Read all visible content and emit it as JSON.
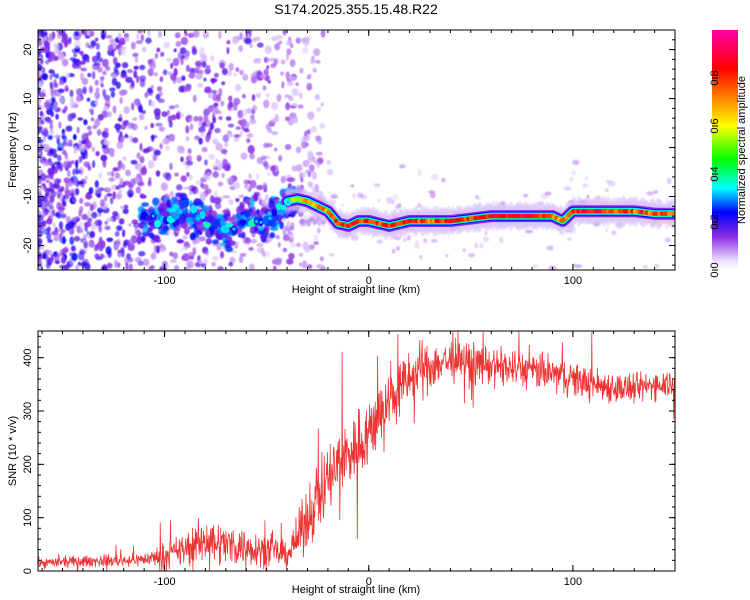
{
  "title": "S174.2025.355.15.48.R22",
  "chart_data": [
    {
      "type": "heatmap",
      "name": "spectrogram",
      "xlabel": "Height of straight line (km)",
      "ylabel": "Frequency (Hz)",
      "xlim": [
        -162,
        150
      ],
      "ylim": [
        -25,
        24
      ],
      "xticks": [
        -100,
        0,
        100
      ],
      "xtick_labels": [
        "-100",
        "0",
        "100"
      ],
      "yticks": [
        20,
        10,
        0,
        -10,
        -20
      ],
      "ytick_labels": [
        "20",
        "10",
        "0",
        "-10",
        "-20"
      ],
      "colorbar": {
        "label": "Normalized spectral amplitude",
        "range": [
          0,
          1
        ],
        "ticks": [
          0,
          0.2,
          0.4,
          0.6,
          0.8
        ],
        "tick_labels": [
          "0.0",
          "0.2",
          "0.4",
          "0.6",
          "0.8"
        ],
        "colors": [
          "#ffffff",
          "#8a2be2",
          "#0000ff",
          "#00ffff",
          "#00ff00",
          "#ffff00",
          "#ff8000",
          "#ff0000",
          "#ff00aa"
        ]
      },
      "ridge": {
        "x": [
          -110,
          -100,
          -90,
          -80,
          -70,
          -60,
          -50,
          -40,
          -35,
          -30,
          -25,
          -20,
          -15,
          -10,
          -5,
          0,
          10,
          20,
          30,
          40,
          50,
          60,
          70,
          80,
          90,
          95,
          100,
          110,
          120,
          130,
          140,
          150
        ],
        "freq": [
          -14,
          -15,
          -13,
          -15,
          -17,
          -14,
          -15,
          -11,
          -10.5,
          -11,
          -12,
          -13,
          -15.5,
          -16,
          -15,
          -15,
          -16,
          -15,
          -15,
          -15,
          -14.5,
          -14,
          -14,
          -14,
          -14,
          -15,
          -13,
          -13,
          -13,
          -13,
          -13.5,
          -13.5
        ],
        "amplitude": [
          0.3,
          0.4,
          0.3,
          0.35,
          0.3,
          0.3,
          0.3,
          0.5,
          0.6,
          0.65,
          0.7,
          0.75,
          0.8,
          0.85,
          0.8,
          0.8,
          0.8,
          0.8,
          0.75,
          0.85,
          0.8,
          0.85,
          0.85,
          0.85,
          0.75,
          0.7,
          0.8,
          0.85,
          0.8,
          0.75,
          0.75,
          0.7
        ]
      }
    },
    {
      "type": "line",
      "name": "snr",
      "xlabel": "Height of straight line (km)",
      "ylabel": "SNR (10 * v/v)",
      "xlim": [
        -162,
        150
      ],
      "ylim": [
        0,
        450
      ],
      "xticks": [
        -100,
        0,
        100
      ],
      "xtick_labels": [
        "-100",
        "0",
        "100"
      ],
      "yticks": [
        0,
        100,
        200,
        300,
        400
      ],
      "ytick_labels": [
        "0",
        "100",
        "200",
        "300",
        "400"
      ],
      "color": "#ee3333",
      "trend": {
        "x": [
          -162,
          -140,
          -120,
          -110,
          -100,
          -90,
          -80,
          -70,
          -60,
          -50,
          -40,
          -35,
          -30,
          -25,
          -20,
          -15,
          -10,
          -5,
          0,
          5,
          10,
          15,
          20,
          25,
          30,
          35,
          40,
          50,
          60,
          70,
          80,
          90,
          100,
          110,
          120,
          130,
          140,
          150
        ],
        "y": [
          15,
          18,
          20,
          22,
          28,
          40,
          60,
          50,
          45,
          40,
          30,
          60,
          100,
          140,
          170,
          200,
          220,
          240,
          260,
          290,
          320,
          340,
          360,
          375,
          385,
          390,
          395,
          390,
          385,
          380,
          375,
          370,
          360,
          350,
          345,
          340,
          350,
          355
        ]
      },
      "noise_amplitude": {
        "x": [
          -162,
          -110,
          -100,
          -80,
          -60,
          -40,
          -30,
          -20,
          0,
          20,
          40,
          60,
          100,
          150
        ],
        "y": [
          8,
          10,
          20,
          35,
          30,
          20,
          50,
          60,
          55,
          45,
          35,
          30,
          28,
          22
        ]
      }
    }
  ]
}
